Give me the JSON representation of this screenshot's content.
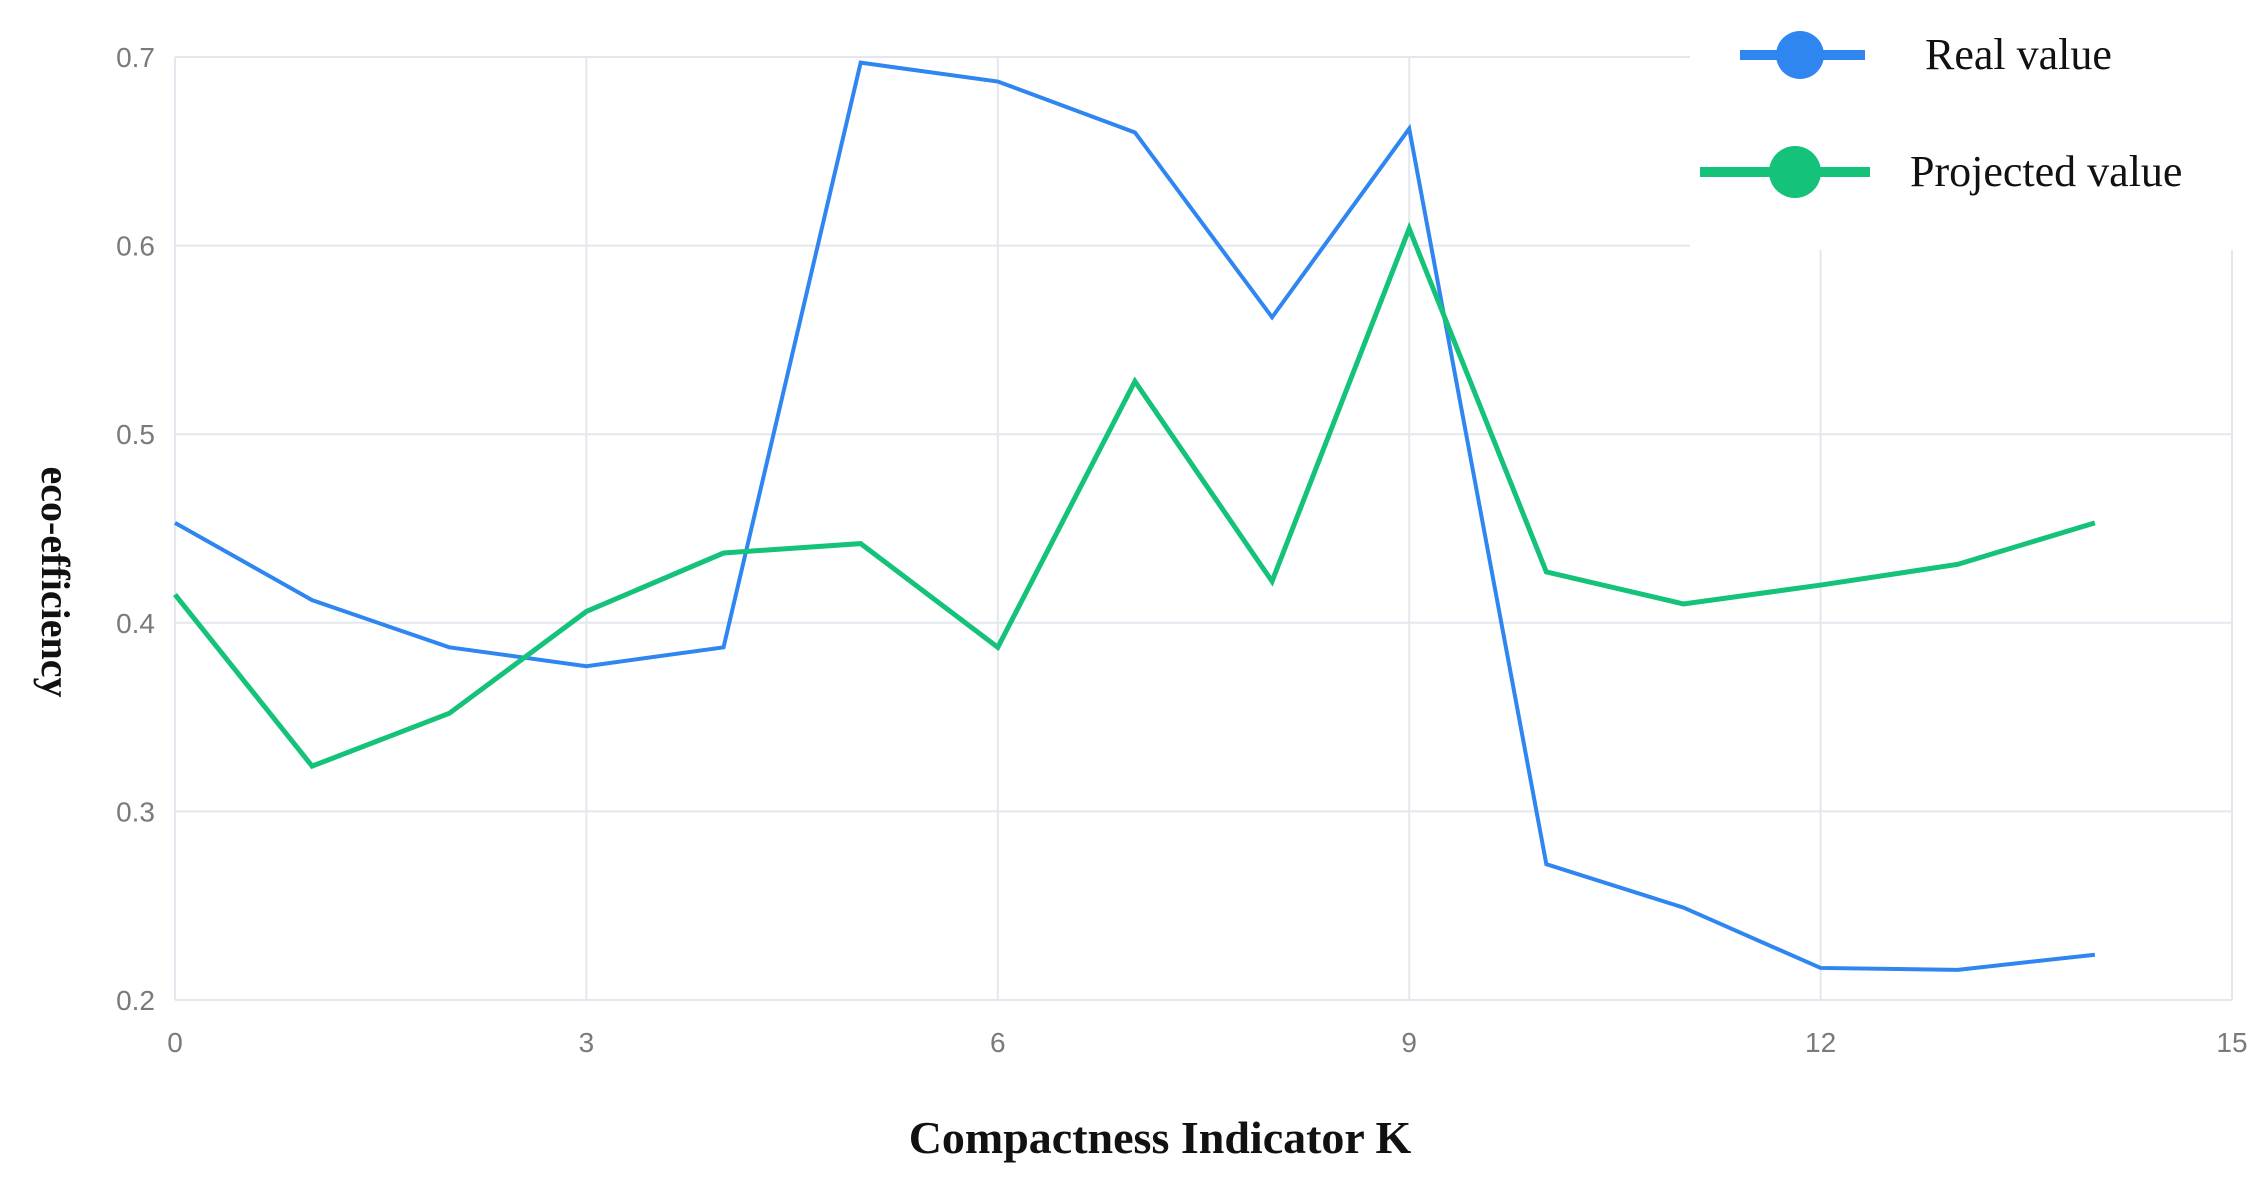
{
  "chart_data": {
    "type": "line",
    "xlabel": "Compactness Indicator  K",
    "ylabel": "eco-efficiency",
    "xlim": [
      0,
      15
    ],
    "ylim": [
      0.2,
      0.7
    ],
    "xticks": [
      0,
      3,
      6,
      9,
      12,
      15
    ],
    "yticks": [
      0.2,
      0.3,
      0.4,
      0.5,
      0.6,
      0.7
    ],
    "xtick_labels": [
      "0",
      "3",
      "6",
      "9",
      "12",
      "15"
    ],
    "ytick_labels": [
      "0.2",
      "0.3",
      "0.4",
      "0.5",
      "0.6",
      "0.7"
    ],
    "grid": true,
    "legend_position": "top-right",
    "x": [
      0,
      1,
      2,
      3,
      4,
      5,
      6,
      7,
      8,
      9,
      10,
      11,
      12,
      13,
      14
    ],
    "series": [
      {
        "name": "Real value",
        "color": "#2f86f0",
        "values": [
          0.453,
          0.412,
          0.387,
          0.377,
          0.387,
          0.697,
          0.687,
          0.66,
          0.562,
          0.662,
          0.272,
          0.249,
          0.217,
          0.216,
          0.224
        ]
      },
      {
        "name": "Projected value",
        "color": "#14c27a",
        "values": [
          0.415,
          0.324,
          0.352,
          0.406,
          0.437,
          0.442,
          0.387,
          0.528,
          0.422,
          0.609,
          0.427,
          0.41,
          0.42,
          0.431,
          0.453
        ]
      }
    ]
  }
}
